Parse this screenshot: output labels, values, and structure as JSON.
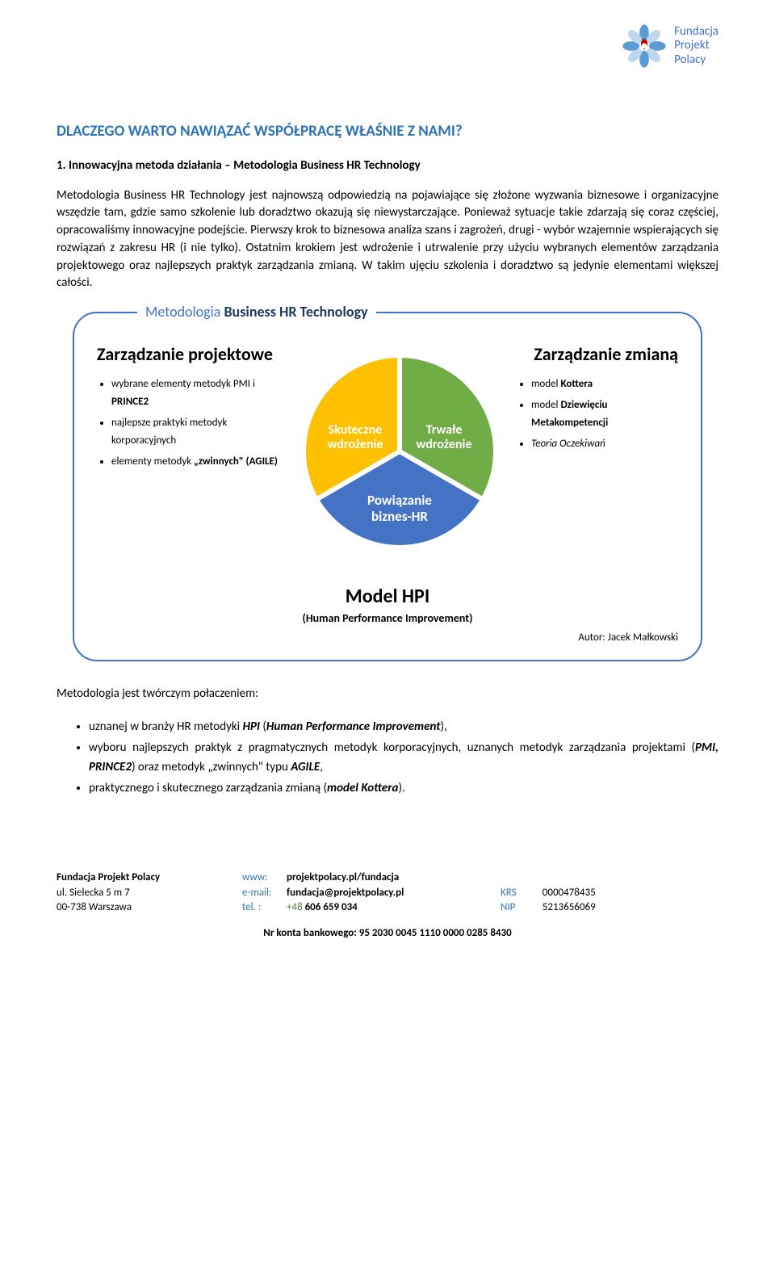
{
  "logo": {
    "line1": "Fundacja",
    "line2": "Projekt",
    "line3": "Polacy",
    "text_color": "#4472c4",
    "petal_blue": "#5b9bd5",
    "petal_red": "#c00000",
    "petal_light": "#bdd7ee"
  },
  "heading": "DLACZEGO WARTO NAWIĄZAĆ WSPÓŁPRACĘ WŁAŚNIE Z NAMI?",
  "heading_color": "#2e74b5",
  "subheading": "1. Innowacyjna metoda działania – Metodologia Business HR Technology",
  "body": "Metodologia Business HR Technology jest najnowszą odpowiedzią na pojawiające się złożone wyzwania biznesowe i organizacyjne wszędzie tam, gdzie samo szkolenie lub doradztwo okazują się niewystarczające. Ponieważ sytuacje takie zdarzają się coraz częściej, opracowaliśmy innowacyjne podejście. Pierwszy krok to biznesowa analiza szans i zagrożeń, drugi - wybór wzajemnie wspierających się rozwiązań z zakresu HR (i nie tylko). Ostatnim krokiem jest wdrożenie i utrwalenie przy użyciu wybranych elementów zarządzania projektowego oraz najlepszych praktyk zarządzania zmianą. W takim ujęciu szkolenia i doradztwo są jedynie elementami większej całości.",
  "frame": {
    "label_prefix": "Metodologia ",
    "label_bold": "Business HR Technology",
    "border_color": "#4472c4",
    "left": {
      "title": "Zarządzanie projektowe",
      "items_html": [
        "wybrane elementy metodyk PMI i <strong>PRINCE2</strong>",
        "najlepsze praktyki metodyk korporacyjnych",
        "elementy metodyk <strong>„zwinnych\" (AGILE)</strong>"
      ]
    },
    "right": {
      "title": "Zarządzanie zmianą",
      "items_html": [
        "model <strong>Kottera</strong>",
        "model <strong>Dziewięciu Metakompetencji</strong>",
        "<em>Teoria Oczekiwań</em>"
      ]
    },
    "pie": {
      "type": "pie",
      "slices": [
        {
          "label_line1": "Skuteczne",
          "label_line2": "wdrożenie",
          "color": "#ffc000",
          "text_color": "#ffffff"
        },
        {
          "label_line1": "Trwałe",
          "label_line2": "wdrożenie",
          "color": "#70ad47",
          "text_color": "#ffffff"
        },
        {
          "label_line1": "Powiązanie",
          "label_line2": "biznes-HR",
          "color": "#4472c4",
          "text_color": "#ffffff"
        }
      ],
      "gap_color": "#ffffff",
      "label_fontsize": 15,
      "label_fontweight": "600"
    },
    "model_title": "Model HPI",
    "model_sub": "(Human Performance Improvement)",
    "author": "Autor: Jacek Małkowski"
  },
  "post_text": "Metodologia jest twórczym połaczeniem:",
  "bullets_html": [
    "uznanej w branży HR metodyki <strong><em>HPI</em></strong> (<strong><em>Human Performance Improvement</em></strong>),",
    "wyboru najlepszych praktyk z pragmatycznych metodyk korporacyjnych, uznanych metodyk zarządzania projektami (<strong><em>PMI, PRINCE2</em></strong>) oraz metodyk „zwinnych\" typu <strong><em>AGILE</em></strong>,",
    "praktycznego i skutecznego zarządzania zmianą (<strong><em>model Kottera</em></strong>)."
  ],
  "footer": {
    "org": "Fundacja Projekt Polacy",
    "addr1": "ul. Sielecka 5 m 7",
    "addr2": "00-738 Warszawa",
    "www_label": "www:",
    "www": "projektpolacy.pl/fundacja",
    "email_label": "e-mail:",
    "email": "fundacja@projektpolacy.pl",
    "tel_label": "tel. :",
    "tel_prefix": "+48",
    "tel": " 606 659 034",
    "krs_label": "KRS",
    "krs": "0000478435",
    "nip_label": "NIP",
    "nip": "5213656069",
    "bank_label": "Nr konta bankowego:  ",
    "bank": "95 2030 0045 1110 0000 0285 8430",
    "label_color": "#2e74b5",
    "green_color": "#548235"
  }
}
